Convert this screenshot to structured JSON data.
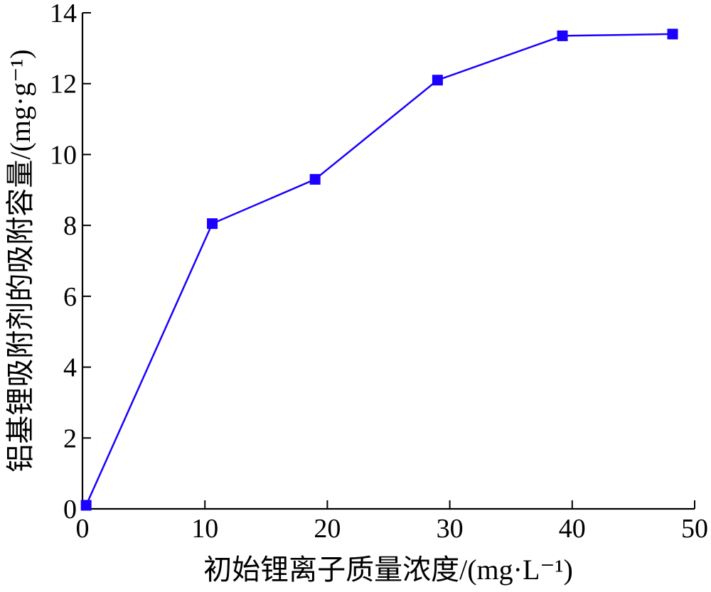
{
  "chart_data": {
    "type": "line",
    "x": [
      0.3,
      10.6,
      19.0,
      29.0,
      39.2,
      48.2
    ],
    "series": [
      {
        "values": [
          0.1,
          8.05,
          9.3,
          12.1,
          13.35,
          13.4
        ],
        "color": "#1a00ff",
        "marker": "square"
      }
    ],
    "xlabel": "初始锂离子质量浓度/(mg·L⁻¹)",
    "ylabel": "铝基锂吸附剂的吸附容量/(mg·g⁻¹)",
    "xlim": [
      0,
      50
    ],
    "ylim": [
      0,
      14
    ],
    "xticks": [
      "0",
      "10",
      "20",
      "30",
      "40",
      "50"
    ],
    "yticks": [
      "0",
      "2",
      "4",
      "6",
      "8",
      "10",
      "12",
      "14"
    ],
    "grid": false,
    "axis_color": "#000000"
  }
}
